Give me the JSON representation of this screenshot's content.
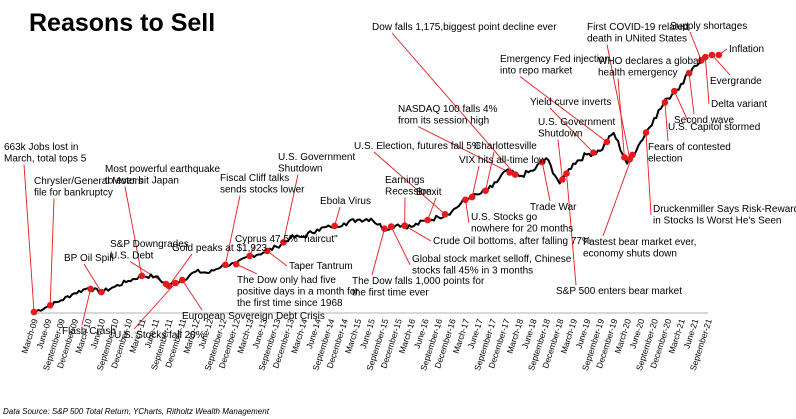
{
  "chart_data": {
    "type": "line",
    "title": "Reasons to Sell",
    "source": "Data Source: S&P 500 Total Return, YCharts, Ritholtz Wealth Management",
    "xlabel": "",
    "ylabel": "",
    "grid": false,
    "line_color": "#000000",
    "marker_color": "#e8191c",
    "leader_color": "#e8191c",
    "x_ticks": [
      "March-09",
      "June-09",
      "September-09",
      "December-09",
      "March-10",
      "June-10",
      "September-10",
      "December-10",
      "March-11",
      "June-11",
      "September-11",
      "December-11",
      "March-12",
      "June-12",
      "September-12",
      "December-12",
      "March-13",
      "June-13",
      "September-13",
      "December-13",
      "March-14",
      "June-14",
      "September-14",
      "December-14",
      "March-15",
      "June-15",
      "September-15",
      "December-15",
      "March-16",
      "June-16",
      "September-16",
      "December-16",
      "March-17",
      "June-17",
      "September-17",
      "December-17",
      "March-18",
      "June-18",
      "September-18",
      "December-18",
      "March-19",
      "June-19",
      "September-19",
      "December-19",
      "March-20",
      "June-20",
      "September-20",
      "December-20",
      "March-21",
      "June-21",
      "September-21"
    ],
    "series": [
      {
        "values": [
          1.0,
          1.15,
          1.32,
          1.52,
          1.66,
          1.55,
          1.7,
          1.86,
          2.0,
          1.98,
          1.72,
          1.88,
          2.12,
          2.08,
          2.3,
          2.32,
          2.55,
          2.64,
          2.8,
          3.05,
          3.08,
          3.28,
          3.35,
          3.45,
          3.55,
          3.58,
          3.3,
          3.42,
          3.35,
          3.52,
          3.62,
          3.78,
          4.1,
          4.25,
          4.45,
          4.9,
          4.75,
          4.9,
          5.25,
          4.55,
          5.1,
          5.35,
          5.45,
          5.95,
          5.1,
          5.7,
          6.35,
          6.9,
          7.3,
          7.8,
          8.1
        ]
      }
    ],
    "annotations": [
      {
        "lines": [
          "663k Jobs lost in",
          "March, total tops 5"
        ],
        "x": 0
      },
      {
        "lines": [
          "Chrysler/General Motors",
          "file for bankruptcy"
        ],
        "x": 1.2
      },
      {
        "lines": [
          "BP Oil Spill"
        ],
        "x": 5
      },
      {
        "lines": [
          "Flash Crash"
        ],
        "x": 4.2
      },
      {
        "lines": [
          "Most powerful earthquake",
          "to ever hit Japan"
        ],
        "x": 8
      },
      {
        "lines": [
          "S&P Downgrades",
          "U.S. Debt"
        ],
        "x": 9.8
      },
      {
        "lines": [
          "U.S. Stocks fall 20%"
        ],
        "x": 10.5
      },
      {
        "lines": [
          "European Sovereign Debt Crisis"
        ],
        "x": 11
      },
      {
        "lines": [
          "Gold peaks at $1,923"
        ],
        "x": 10
      },
      {
        "lines": [
          "Fiscal Cliff talks",
          "sends stocks lower"
        ],
        "x": 14.2
      },
      {
        "lines": [
          "Cyprus 47.5% \"haircut\""
        ],
        "x": 16
      },
      {
        "lines": [
          "The Dow only had five",
          "positive days in a month for",
          "the first time since 1968"
        ],
        "x": 15
      },
      {
        "lines": [
          "U.S. Government",
          "Shutdown"
        ],
        "x": 18.5
      },
      {
        "lines": [
          "Taper Tantrum"
        ],
        "x": 17.3
      },
      {
        "lines": [
          "Ebola Virus"
        ],
        "x": 22.3
      },
      {
        "lines": [
          "The Dow falls 1,000 points for",
          "the first time ever"
        ],
        "x": 26
      },
      {
        "lines": [
          "U.S. Election, futures fall 5%"
        ],
        "x": 30.5
      },
      {
        "lines": [
          "Earnings",
          "Recession"
        ],
        "x": 27.5
      },
      {
        "lines": [
          "Brexit"
        ],
        "x": 29.2
      },
      {
        "lines": [
          "Global stock market selloff, Chinese",
          "stocks fall 45% in 3 months"
        ],
        "x": 26.5
      },
      {
        "lines": [
          "Crude Oil bottoms, after falling 77%"
        ],
        "x": 27.5
      },
      {
        "lines": [
          "Dow falls 1,175,biggest point decline ever"
        ],
        "x": 35.7
      },
      {
        "lines": [
          "NASDAQ 100 falls 4%",
          "from its  session high"
        ],
        "x": 35.3
      },
      {
        "lines": [
          "Charlottesville"
        ],
        "x": 33.5
      },
      {
        "lines": [
          "VIX hits all-time low"
        ],
        "x": 32.5
      },
      {
        "lines": [
          "U.S. Stocks go",
          "nowhere for 20 months"
        ],
        "x": 32
      },
      {
        "lines": [
          "U.S. Government",
          "Shutdown"
        ],
        "x": 39.2
      },
      {
        "lines": [
          "Trade War"
        ],
        "x": 37.7
      },
      {
        "lines": [
          "S&P 500 enters bear market"
        ],
        "x": 39.5
      },
      {
        "lines": [
          "Yield curve inverts"
        ],
        "x": 41.5
      },
      {
        "lines": [
          "Emergency Fed injection",
          "into repo market"
        ],
        "x": 42.5
      },
      {
        "lines": [
          "First COVID-19 related",
          "death in UNited States"
        ],
        "x": 44.2
      },
      {
        "lines": [
          "WHO declares a global",
          "health emergency"
        ],
        "x": 43.8
      },
      {
        "lines": [
          "Fastest bear market ever,",
          "economy shuts down"
        ],
        "x": 44.4
      },
      {
        "lines": [
          "Druckenmiller Says Risk-Reward",
          "in Stocks Is Worst He's Seen"
        ],
        "x": 45.4
      },
      {
        "lines": [
          "Fears of contested",
          "election"
        ],
        "x": 46.8
      },
      {
        "lines": [
          "U.S. Capitol stormed"
        ],
        "x": 47.5
      },
      {
        "lines": [
          "Second wave"
        ],
        "x": 48.6
      },
      {
        "lines": [
          "Delta variant"
        ],
        "x": 49.8
      },
      {
        "lines": [
          "Evergrande"
        ],
        "x": 50.3
      },
      {
        "lines": [
          "Inflation"
        ],
        "x": 50.8
      },
      {
        "lines": [
          "Supply shortages"
        ],
        "x": 49.5
      }
    ]
  }
}
